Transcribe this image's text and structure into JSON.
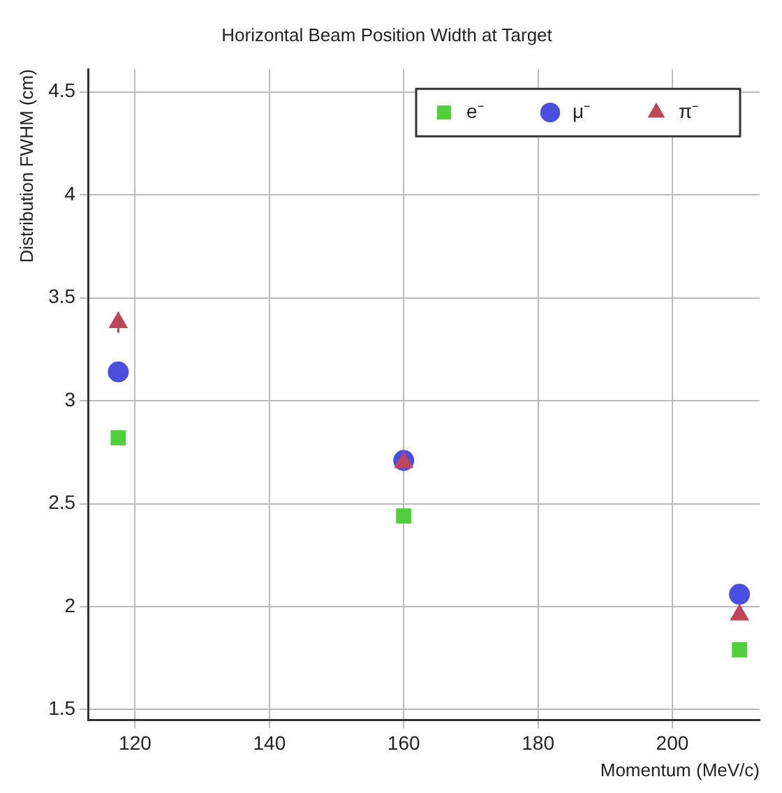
{
  "chart_data": {
    "type": "scatter",
    "title": "Horizontal Beam Position Width at Target",
    "xlabel": "Momentum (MeV/c)",
    "ylabel": "Distribution FWHM (cm)",
    "x": [
      117.5,
      160,
      210
    ],
    "series": [
      {
        "name": "e⁻",
        "color": "#4fd03a",
        "marker": "square",
        "values": [
          2.82,
          2.44,
          1.79
        ]
      },
      {
        "name": "μ⁻",
        "color": "#4b4fe0",
        "marker": "circle",
        "values": [
          3.14,
          2.71,
          2.06
        ]
      },
      {
        "name": "π⁻",
        "color": "#c0455a",
        "marker": "triangle",
        "values": [
          3.38,
          2.7,
          1.96
        ],
        "errors": [
          0.05,
          null,
          null
        ]
      }
    ],
    "xlim": [
      113,
      213
    ],
    "xticks": [
      120,
      140,
      160,
      180,
      200
    ],
    "ylim": [
      1.45,
      4.61
    ],
    "yticks": [
      1.5,
      2,
      2.5,
      3,
      3.5,
      4,
      4.5
    ],
    "grid": true,
    "legend": "top right"
  }
}
